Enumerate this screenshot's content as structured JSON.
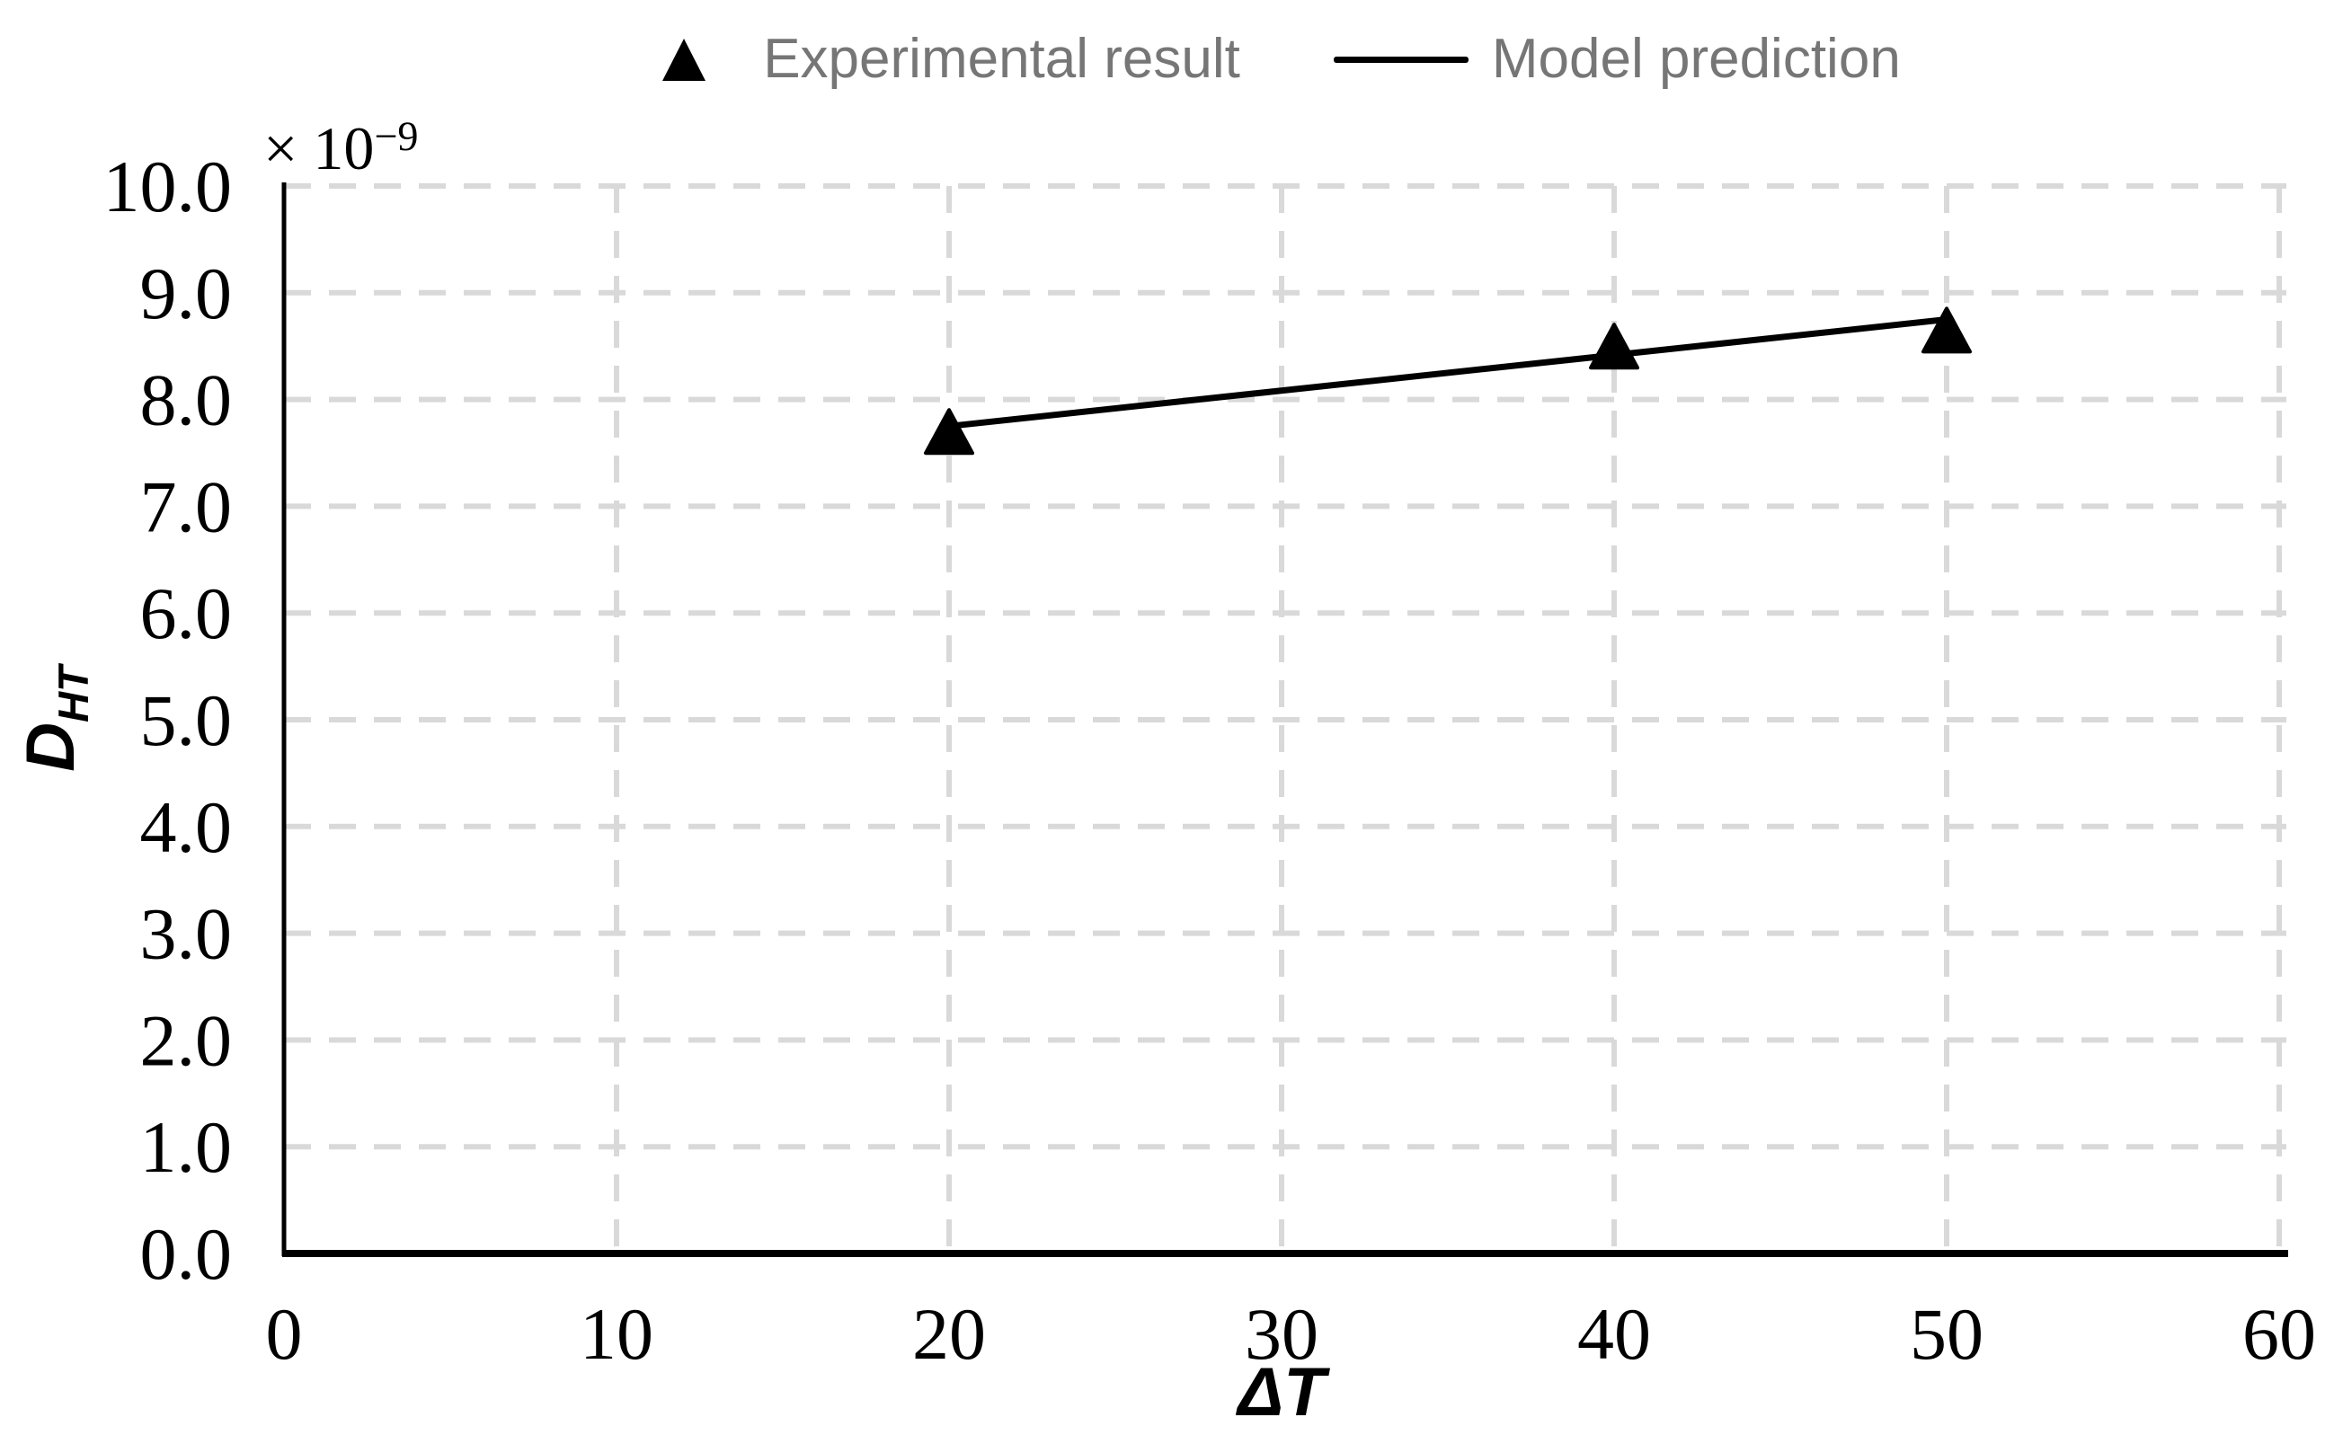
{
  "legend": {
    "items": [
      {
        "label": "Experimental result",
        "marker": "triangle"
      },
      {
        "label": "Model prediction",
        "marker": "line"
      }
    ]
  },
  "labels": {
    "xlabel": "ΔT",
    "ylabel_base": "D",
    "ylabel_sub": "HT",
    "y_multiplier_base": "× 10",
    "y_multiplier_exp": "−9"
  },
  "colors": {
    "marker": "#000000",
    "model_line": "#000000",
    "grid": "#d9d9d9",
    "axis": "#000000",
    "legend_text": "#767676"
  },
  "chart_data": {
    "type": "scatter",
    "title": "",
    "xlabel": "ΔT",
    "ylabel": "D_HT",
    "y_unit_note": "y values are in units of 10^-9 (axis multiplier × 10⁻⁹ shown at top)",
    "xlim": [
      0,
      60
    ],
    "ylim": [
      0,
      10
    ],
    "xticks": [
      0,
      10,
      20,
      30,
      40,
      50,
      60
    ],
    "ytick_labels": [
      "0.0",
      "1.0",
      "2.0",
      "3.0",
      "4.0",
      "5.0",
      "6.0",
      "7.0",
      "8.0",
      "9.0",
      "10.0"
    ],
    "grid": true,
    "grid_style": "dashed",
    "legend_position": "top-center",
    "series": [
      {
        "name": "Experimental result",
        "type": "scatter",
        "marker": "triangle",
        "color": "#000000",
        "points": [
          [
            20,
            7.7
          ],
          [
            40,
            8.5
          ],
          [
            50,
            8.65
          ]
        ]
      },
      {
        "name": "Model prediction",
        "type": "line",
        "color": "#000000",
        "points": [
          [
            20,
            7.75
          ],
          [
            50,
            8.75
          ]
        ]
      }
    ]
  }
}
